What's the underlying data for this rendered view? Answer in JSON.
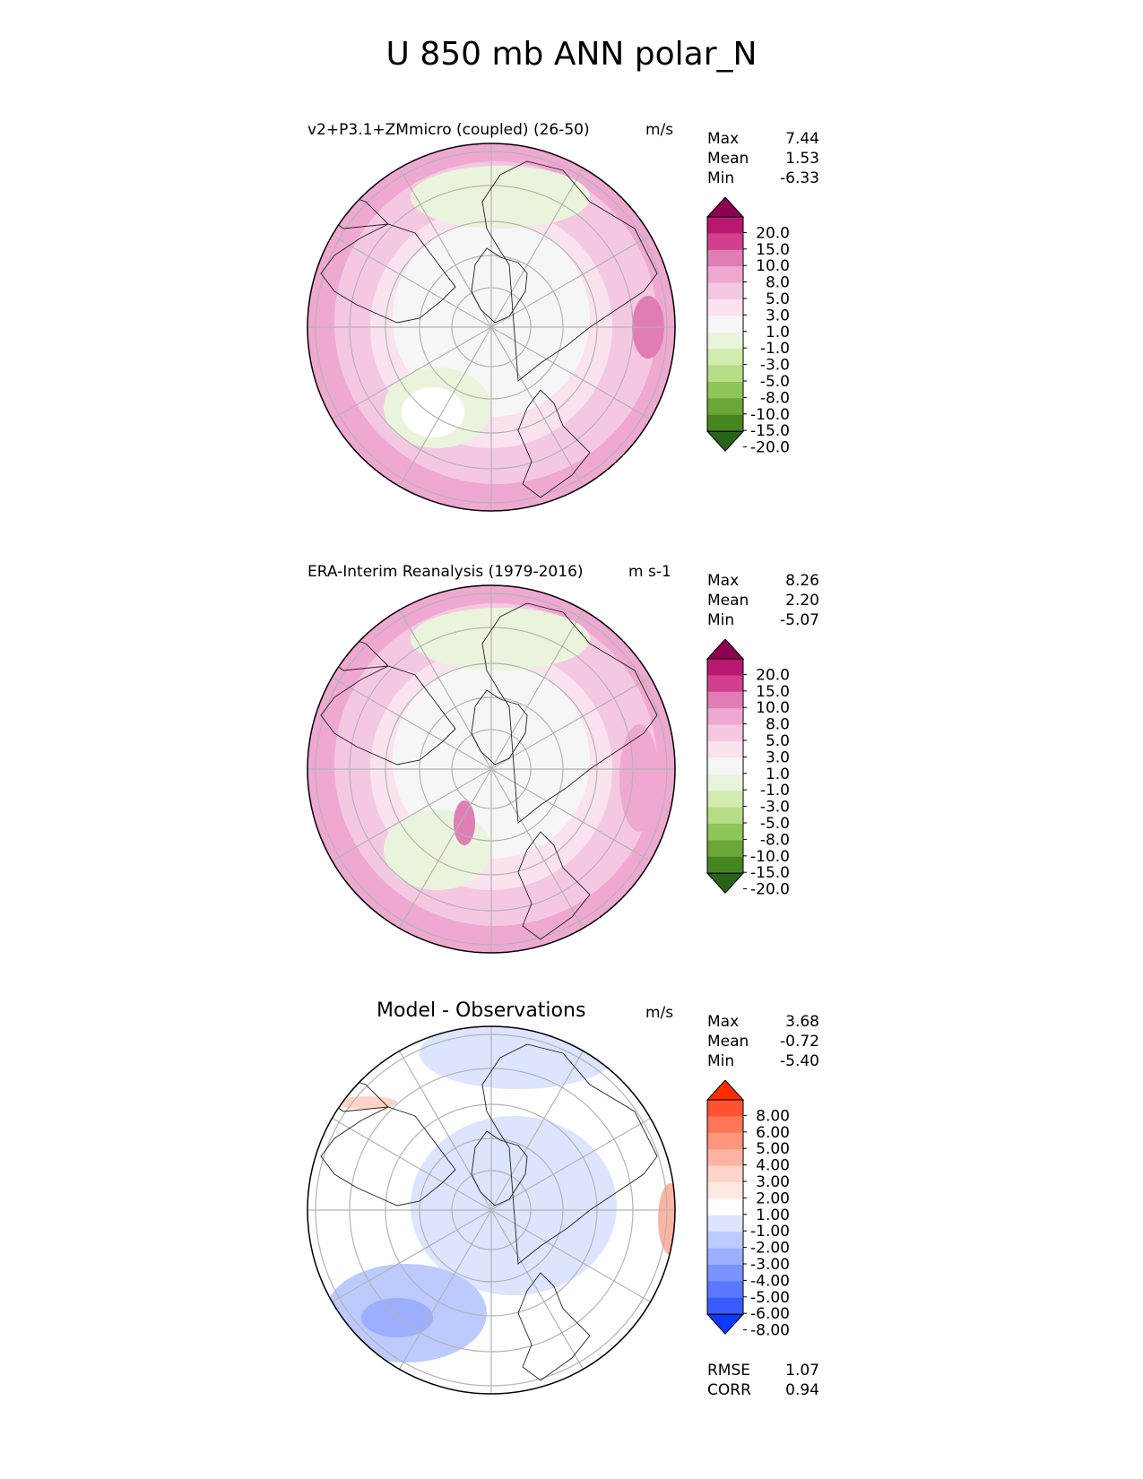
{
  "figure": {
    "title": "U 850 mb ANN polar_N"
  },
  "panels": [
    {
      "title": "v2+P3.1+ZMmicro (coupled) (26-50)",
      "units": "m/s",
      "stats": [
        {
          "label": "Max",
          "value": "7.44"
        },
        {
          "label": "Mean",
          "value": "1.53"
        },
        {
          "label": "Min",
          "value": "-6.33"
        }
      ],
      "colorbar": {
        "ticks": [
          "20.0",
          "15.0",
          "10.0",
          "8.0",
          "5.0",
          "3.0",
          "1.0",
          "-1.0",
          "-3.0",
          "-5.0",
          "-8.0",
          "-10.0",
          "-15.0",
          "-20.0"
        ],
        "colors": [
          "#8e0152",
          "#b8186f",
          "#d23f8f",
          "#e07db5",
          "#efa8d1",
          "#f5c8e2",
          "#fae2ef",
          "#f6f6f6",
          "#eaf4dc",
          "#d2ebaf",
          "#b5dd85",
          "#8ec657",
          "#6ba637",
          "#46861f",
          "#276419"
        ]
      }
    },
    {
      "title": "ERA-Interim Reanalysis (1979-2016)",
      "units": "m s-1",
      "stats": [
        {
          "label": "Max",
          "value": "8.26"
        },
        {
          "label": "Mean",
          "value": "2.20"
        },
        {
          "label": "Min",
          "value": "-5.07"
        }
      ],
      "colorbar": {
        "ticks": [
          "20.0",
          "15.0",
          "10.0",
          "8.0",
          "5.0",
          "3.0",
          "1.0",
          "-1.0",
          "-3.0",
          "-5.0",
          "-8.0",
          "-10.0",
          "-15.0",
          "-20.0"
        ],
        "colors": [
          "#8e0152",
          "#b8186f",
          "#d23f8f",
          "#e07db5",
          "#efa8d1",
          "#f5c8e2",
          "#fae2ef",
          "#f6f6f6",
          "#eaf4dc",
          "#d2ebaf",
          "#b5dd85",
          "#8ec657",
          "#6ba637",
          "#46861f",
          "#276419"
        ]
      }
    },
    {
      "title": "Model - Observations",
      "units": "m/s",
      "stats": [
        {
          "label": "Max",
          "value": "3.68"
        },
        {
          "label": "Mean",
          "value": "-0.72"
        },
        {
          "label": "Min",
          "value": "-5.40"
        }
      ],
      "colorbar": {
        "ticks": [
          "8.00",
          "6.00",
          "5.00",
          "4.00",
          "3.00",
          "2.00",
          "1.00",
          "-1.00",
          "-2.00",
          "-3.00",
          "-4.00",
          "-5.00",
          "-6.00",
          "-8.00"
        ],
        "colors": [
          "#fe2c00",
          "#fe5230",
          "#fe7656",
          "#fe957c",
          "#feb4a2",
          "#fed4c8",
          "#fee9e2",
          "#fefefe",
          "#dce4fe",
          "#bccafe",
          "#9caffe",
          "#7a93fe",
          "#5a78fe",
          "#3a5cfe",
          "#0c39fe"
        ]
      }
    }
  ],
  "metrics": [
    {
      "label": "RMSE",
      "value": "1.07"
    },
    {
      "label": "CORR",
      "value": "0.94"
    }
  ],
  "chart_data": [
    {
      "type": "heatmap",
      "title": "v2+P3.1+ZMmicro (coupled) (26-50)",
      "units": "m/s",
      "projection": "north polar stereographic",
      "stats": {
        "max": 7.44,
        "mean": 1.53,
        "min": -6.33
      },
      "levels": [
        -20,
        -15,
        -10,
        -8,
        -5,
        -3,
        -1,
        1,
        3,
        5,
        8,
        10,
        15,
        20
      ]
    },
    {
      "type": "heatmap",
      "title": "ERA-Interim Reanalysis (1979-2016)",
      "units": "m s-1",
      "projection": "north polar stereographic",
      "stats": {
        "max": 8.26,
        "mean": 2.2,
        "min": -5.07
      },
      "levels": [
        -20,
        -15,
        -10,
        -8,
        -5,
        -3,
        -1,
        1,
        3,
        5,
        8,
        10,
        15,
        20
      ]
    },
    {
      "type": "heatmap",
      "title": "Model - Observations",
      "units": "m/s",
      "projection": "north polar stereographic",
      "stats": {
        "max": 3.68,
        "mean": -0.72,
        "min": -5.4,
        "rmse": 1.07,
        "corr": 0.94
      },
      "levels": [
        -8,
        -6,
        -5,
        -4,
        -3,
        -2,
        -1,
        1,
        2,
        3,
        4,
        5,
        6,
        8
      ]
    }
  ]
}
